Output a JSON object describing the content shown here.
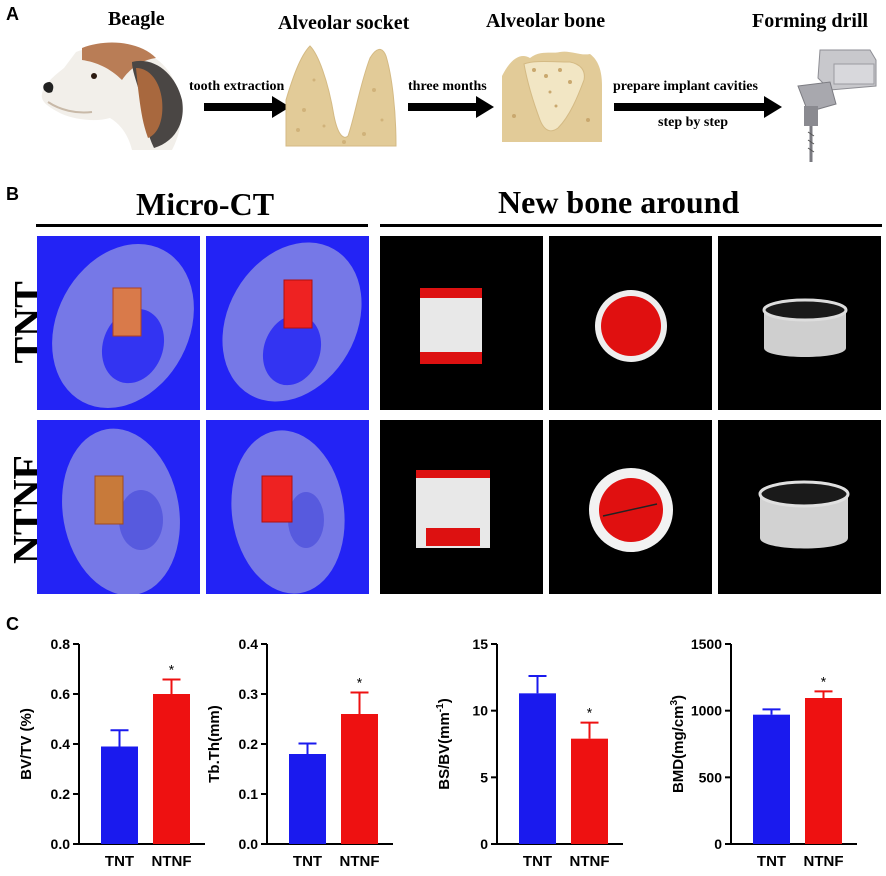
{
  "panels": {
    "a": "A",
    "b": "B",
    "c": "C"
  },
  "panel_a": {
    "steps": [
      "Beagle",
      "Alveolar socket",
      "Alveolar bone",
      "Forming drill"
    ],
    "arrows": [
      "tooth extraction",
      "three months",
      "prepare implant cavities",
      "step by step"
    ]
  },
  "panel_b": {
    "headers": [
      "Micro-CT",
      "New bone around"
    ],
    "rows": [
      "TNT",
      "NTNF"
    ]
  },
  "colors": {
    "tnt": "#1a1aee",
    "ntnf": "#ee1111",
    "ct_bg": "#2323f5",
    "bone": "#7f82e6",
    "implant": "#e03020",
    "marrow": "#e6cf9c"
  },
  "chart_data": [
    {
      "type": "bar",
      "categories": [
        "TNT",
        "NTNF"
      ],
      "values": [
        0.39,
        0.6
      ],
      "errors": [
        0.065,
        0.058
      ],
      "significance": [
        "",
        "*"
      ],
      "ylabel": "BV/TV (%)",
      "ylim": [
        0,
        0.8
      ],
      "yticks": [
        "0.0",
        "0.2",
        "0.4",
        "0.6",
        "0.8"
      ]
    },
    {
      "type": "bar",
      "categories": [
        "TNT",
        "NTNF"
      ],
      "values": [
        0.18,
        0.26
      ],
      "errors": [
        0.021,
        0.043
      ],
      "significance": [
        "",
        "*"
      ],
      "ylabel": "Tb.Th(mm)",
      "ylim": [
        0,
        0.4
      ],
      "yticks": [
        "0.0",
        "0.1",
        "0.2",
        "0.3",
        "0.4"
      ]
    },
    {
      "type": "bar",
      "categories": [
        "TNT",
        "NTNF"
      ],
      "values": [
        11.3,
        7.9
      ],
      "errors": [
        1.3,
        1.2
      ],
      "significance": [
        "",
        "*"
      ],
      "ylabel": "BS/BV(mm",
      "ylabel_sup": "-1",
      "ylabel_end": ")",
      "ylim": [
        0,
        15
      ],
      "yticks": [
        "0",
        "5",
        "10",
        "15"
      ]
    },
    {
      "type": "bar",
      "categories": [
        "TNT",
        "NTNF"
      ],
      "values": [
        970,
        1095
      ],
      "errors": [
        40,
        50
      ],
      "significance": [
        "",
        "*"
      ],
      "ylabel": "BMD(mg/cm",
      "ylabel_sup": "3",
      "ylabel_end": ")",
      "ylim": [
        0,
        1500
      ],
      "yticks": [
        "0",
        "500",
        "1000",
        "1500"
      ]
    }
  ]
}
